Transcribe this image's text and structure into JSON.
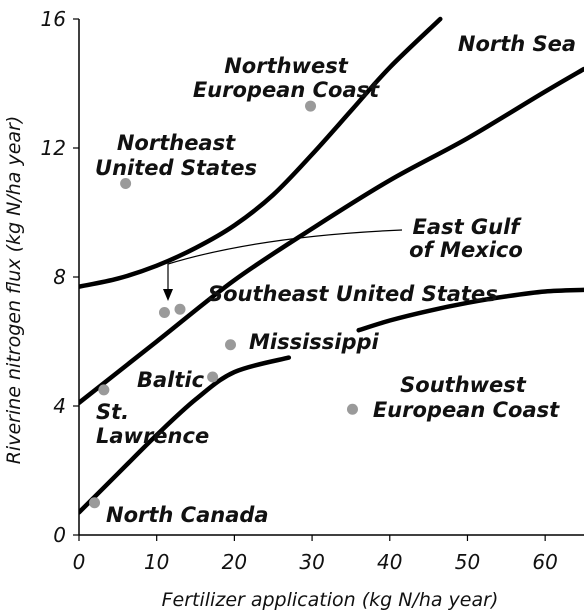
{
  "chart_data": {
    "type": "scatter",
    "title": "",
    "xlabel": "Fertilizer application (kg N/ha year)",
    "ylabel": "Riverine nitrogen flux (kg N/ha year)",
    "xlim": [
      0,
      65
    ],
    "ylim": [
      0,
      16
    ],
    "xticks": [
      0,
      10,
      20,
      30,
      40,
      50,
      60
    ],
    "yticks": [
      0,
      4,
      8,
      12,
      16
    ],
    "grid": false,
    "points": [
      {
        "label": "Northwest European Coast",
        "x": 29.8,
        "y": 13.3
      },
      {
        "label": "Northeast United States",
        "x": 6.0,
        "y": 10.9
      },
      {
        "label": "East Gulf of Mexico",
        "x": 11.0,
        "y": 6.9
      },
      {
        "label": "Southeast United States",
        "x": 13.0,
        "y": 7.0
      },
      {
        "label": "Mississippi",
        "x": 19.5,
        "y": 5.9
      },
      {
        "label": "Baltic",
        "x": 17.2,
        "y": 4.9
      },
      {
        "label": "St. Lawrence",
        "x": 3.2,
        "y": 4.5
      },
      {
        "label": "Southwest European Coast",
        "x": 35.2,
        "y": 3.9
      },
      {
        "label": "North Canada",
        "x": 2.0,
        "y": 1.0
      }
    ],
    "curves": [
      {
        "x": [
          0,
          5,
          10,
          15,
          20,
          25,
          30,
          35,
          40,
          46.5
        ],
        "y": [
          7.7,
          7.95,
          8.35,
          8.9,
          9.6,
          10.55,
          11.8,
          13.15,
          14.5,
          16.0
        ]
      },
      {
        "x": [
          0,
          10,
          20,
          30,
          40,
          50,
          60,
          65
        ],
        "y": [
          4.1,
          6.0,
          7.9,
          9.5,
          11.0,
          12.3,
          13.75,
          14.45
        ]
      },
      {
        "x": [
          0,
          5,
          10,
          15,
          20,
          27
        ],
        "y": [
          0.7,
          1.9,
          3.1,
          4.2,
          5.05,
          5.5
        ],
        "x2": [
          36,
          40,
          45,
          50,
          55,
          60,
          65
        ],
        "y2": [
          6.35,
          6.65,
          6.95,
          7.2,
          7.4,
          7.55,
          7.6
        ]
      }
    ],
    "annotations": [
      {
        "id": "nw-line1",
        "text": "Northwest"
      },
      {
        "id": "nw-line2",
        "text": "European Coast"
      },
      {
        "id": "ne-line1",
        "text": "Northeast"
      },
      {
        "id": "ne-line2",
        "text": "United States"
      },
      {
        "id": "northsea",
        "text": "North Sea"
      },
      {
        "id": "gulf-line1",
        "text": "East Gulf"
      },
      {
        "id": "gulf-line2",
        "text": "of Mexico"
      },
      {
        "id": "seus",
        "text": "Southeast United States"
      },
      {
        "id": "miss",
        "text": "Mississippi"
      },
      {
        "id": "baltic",
        "text": "Baltic"
      },
      {
        "id": "stl-line1",
        "text": "St."
      },
      {
        "id": "stl-line2",
        "text": "Lawrence"
      },
      {
        "id": "sw-line1",
        "text": "Southwest"
      },
      {
        "id": "sw-line2",
        "text": "European Coast"
      },
      {
        "id": "ncanada",
        "text": "North Canada"
      }
    ]
  }
}
